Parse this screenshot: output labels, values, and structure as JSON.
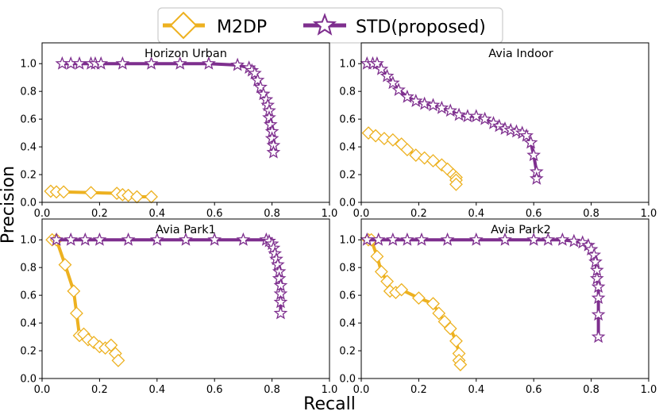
{
  "legend": [
    {
      "name": "M2DP",
      "color": "#EDB120",
      "marker": "diamond-icon"
    },
    {
      "name": "STD(proposed)",
      "color": "#7E2F8E",
      "marker": "star-icon"
    }
  ],
  "xlabel": "Recall",
  "ylabel": "Precision",
  "chart_data": [
    {
      "type": "line",
      "title": "Horizon Urban",
      "xlim": [
        0,
        1.0
      ],
      "ylim": [
        0,
        1.15
      ],
      "xticks": [
        "0.0",
        "0.2",
        "0.4",
        "0.6",
        "0.8",
        "1.0"
      ],
      "yticks": [
        "0.0",
        "0.2",
        "0.4",
        "0.6",
        "0.8",
        "1.0"
      ],
      "series": [
        {
          "name": "M2DP",
          "x": [
            0.03,
            0.05,
            0.075,
            0.17,
            0.26,
            0.28,
            0.3,
            0.33,
            0.38
          ],
          "y": [
            0.08,
            0.075,
            0.075,
            0.07,
            0.065,
            0.055,
            0.05,
            0.04,
            0.04
          ]
        },
        {
          "name": "STD(proposed)",
          "x": [
            0.07,
            0.1,
            0.13,
            0.17,
            0.185,
            0.205,
            0.28,
            0.38,
            0.48,
            0.58,
            0.68,
            0.72,
            0.73,
            0.74,
            0.75,
            0.76,
            0.77,
            0.78,
            0.785,
            0.79,
            0.79,
            0.795,
            0.8,
            0.8,
            0.805,
            0.805
          ],
          "y": [
            1.0,
            1.0,
            1.0,
            1.0,
            1.0,
            1.0,
            1.0,
            1.0,
            1.0,
            1.0,
            0.99,
            0.97,
            0.95,
            0.93,
            0.88,
            0.83,
            0.78,
            0.74,
            0.7,
            0.66,
            0.61,
            0.56,
            0.51,
            0.46,
            0.41,
            0.36
          ]
        }
      ]
    },
    {
      "type": "line",
      "title": "Avia Indoor",
      "xlim": [
        0,
        1.0
      ],
      "ylim": [
        0,
        1.15
      ],
      "xticks": [
        "0.0",
        "0.2",
        "0.4",
        "0.6",
        "0.8",
        "1.0"
      ],
      "yticks": [
        "0.0",
        "0.2",
        "0.4",
        "0.6",
        "0.8",
        "1.0"
      ],
      "series": [
        {
          "name": "M2DP",
          "x": [
            0.025,
            0.05,
            0.08,
            0.11,
            0.14,
            0.16,
            0.19,
            0.22,
            0.25,
            0.28,
            0.3,
            0.32,
            0.33,
            0.33,
            0.33
          ],
          "y": [
            0.5,
            0.48,
            0.46,
            0.45,
            0.42,
            0.38,
            0.34,
            0.32,
            0.3,
            0.27,
            0.24,
            0.2,
            0.18,
            0.16,
            0.13
          ]
        },
        {
          "name": "STD(proposed)",
          "x": [
            0.02,
            0.04,
            0.055,
            0.07,
            0.09,
            0.11,
            0.13,
            0.16,
            0.19,
            0.22,
            0.25,
            0.28,
            0.31,
            0.34,
            0.37,
            0.4,
            0.43,
            0.46,
            0.48,
            0.5,
            0.52,
            0.54,
            0.56,
            0.575,
            0.59,
            0.6,
            0.61,
            0.61
          ],
          "y": [
            1.0,
            1.0,
            1.0,
            0.96,
            0.91,
            0.86,
            0.81,
            0.76,
            0.73,
            0.71,
            0.7,
            0.68,
            0.66,
            0.63,
            0.62,
            0.62,
            0.6,
            0.57,
            0.55,
            0.53,
            0.52,
            0.51,
            0.5,
            0.48,
            0.43,
            0.34,
            0.22,
            0.17
          ]
        }
      ]
    },
    {
      "type": "line",
      "title": "Avia Park1",
      "xlim": [
        0,
        1.0
      ],
      "ylim": [
        0,
        1.15
      ],
      "xticks": [
        "0.0",
        "0.2",
        "0.4",
        "0.6",
        "0.8",
        "1.0"
      ],
      "yticks": [
        "0.0",
        "0.2",
        "0.4",
        "0.6",
        "0.8",
        "1.0"
      ],
      "series": [
        {
          "name": "M2DP",
          "x": [
            0.035,
            0.05,
            0.08,
            0.11,
            0.12,
            0.13,
            0.145,
            0.16,
            0.18,
            0.2,
            0.22,
            0.24,
            0.255,
            0.265
          ],
          "y": [
            1.0,
            1.0,
            0.82,
            0.63,
            0.47,
            0.31,
            0.32,
            0.28,
            0.26,
            0.23,
            0.22,
            0.24,
            0.18,
            0.13
          ]
        },
        {
          "name": "STD(proposed)",
          "x": [
            0.05,
            0.1,
            0.15,
            0.2,
            0.3,
            0.4,
            0.5,
            0.6,
            0.7,
            0.78,
            0.79,
            0.8,
            0.805,
            0.81,
            0.815,
            0.82,
            0.825,
            0.825,
            0.83,
            0.83,
            0.83,
            0.83
          ],
          "y": [
            1.0,
            1.0,
            1.0,
            1.0,
            1.0,
            1.0,
            1.0,
            1.0,
            1.0,
            1.0,
            0.99,
            0.97,
            0.94,
            0.9,
            0.86,
            0.82,
            0.77,
            0.72,
            0.67,
            0.61,
            0.55,
            0.47
          ]
        }
      ]
    },
    {
      "type": "line",
      "title": "Avia Park2",
      "xlim": [
        0,
        1.0
      ],
      "ylim": [
        0,
        1.15
      ],
      "xticks": [
        "0.0",
        "0.2",
        "0.4",
        "0.6",
        "0.8",
        "1.0"
      ],
      "yticks": [
        "0.0",
        "0.2",
        "0.4",
        "0.6",
        "0.8",
        "1.0"
      ],
      "series": [
        {
          "name": "M2DP",
          "x": [
            0.025,
            0.035,
            0.055,
            0.07,
            0.09,
            0.1,
            0.12,
            0.14,
            0.2,
            0.25,
            0.27,
            0.29,
            0.31,
            0.33,
            0.34,
            0.34,
            0.345
          ],
          "y": [
            1.0,
            1.0,
            0.88,
            0.77,
            0.7,
            0.63,
            0.62,
            0.64,
            0.58,
            0.54,
            0.47,
            0.41,
            0.36,
            0.27,
            0.18,
            0.13,
            0.1
          ]
        },
        {
          "name": "STD(proposed)",
          "x": [
            0.02,
            0.06,
            0.11,
            0.16,
            0.21,
            0.3,
            0.4,
            0.5,
            0.6,
            0.65,
            0.7,
            0.74,
            0.77,
            0.79,
            0.8,
            0.81,
            0.815,
            0.82,
            0.82,
            0.825,
            0.825,
            0.825,
            0.825
          ],
          "y": [
            1.0,
            1.0,
            1.0,
            1.0,
            1.0,
            1.0,
            1.0,
            1.0,
            1.0,
            1.0,
            1.0,
            0.99,
            0.98,
            0.96,
            0.93,
            0.89,
            0.84,
            0.78,
            0.72,
            0.66,
            0.58,
            0.46,
            0.3
          ]
        }
      ]
    }
  ]
}
